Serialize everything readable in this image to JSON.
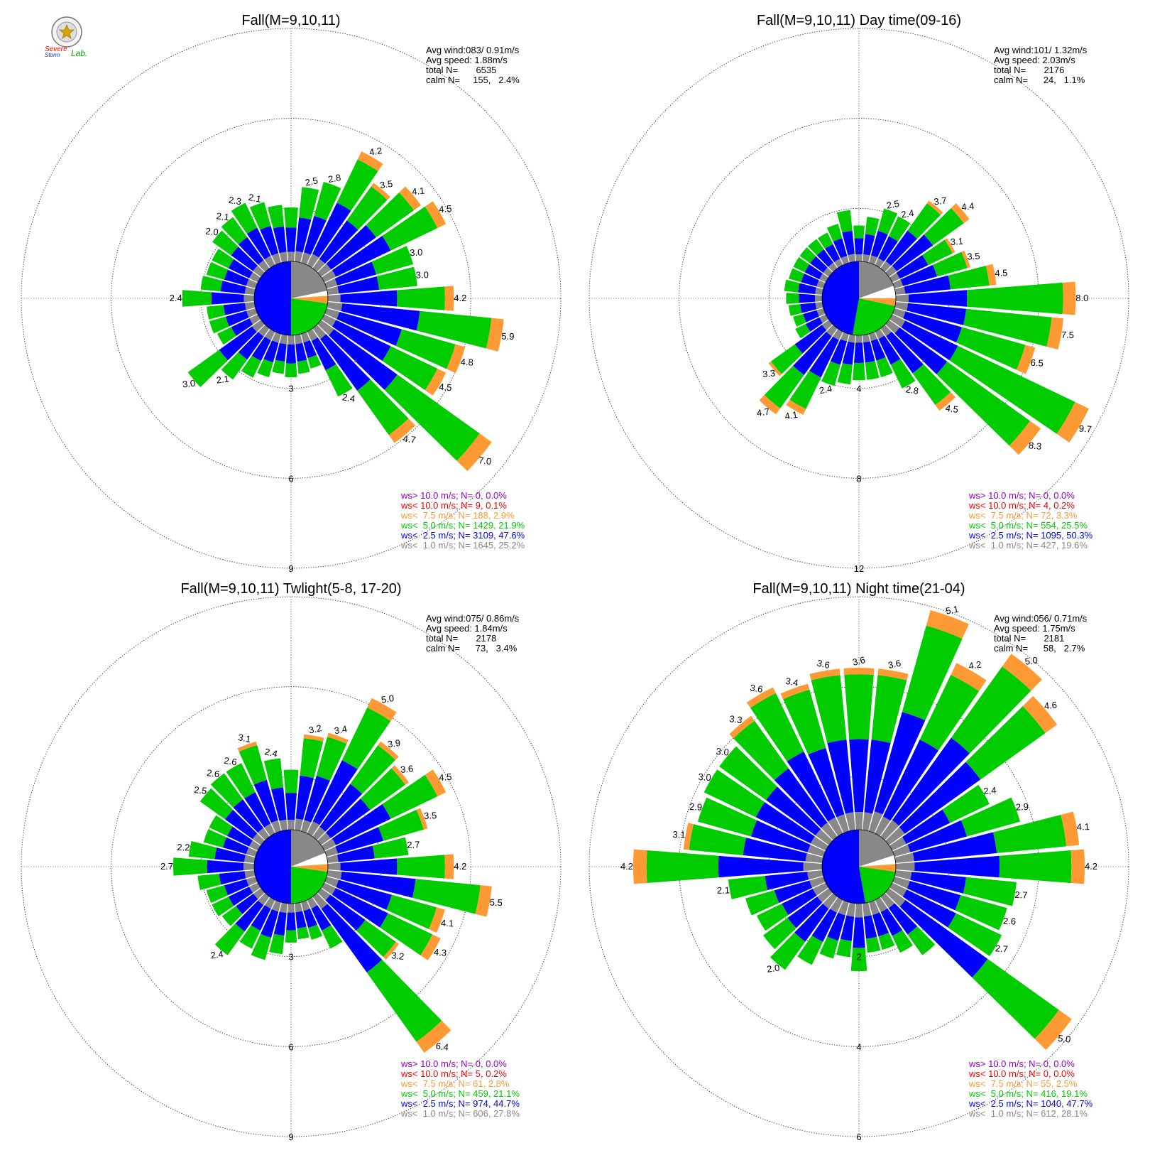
{
  "logo": {
    "text_line1": "Severe",
    "text_line2": "Storm",
    "text_lab": "Lab."
  },
  "colors": {
    "purple": "#9900cc",
    "red": "#ff0000",
    "orange": "#ff9933",
    "green": "#00cc00",
    "blue": "#0000ff",
    "gray": "#888888"
  },
  "chart_data": [
    {
      "type": "windrose",
      "title": "Fall(M=9,10,11)",
      "stats": [
        "Avg wind:083/ 0.91m/s",
        "Avg speed: 1.88m/s",
        "total N=       6535",
        "calm N=     155,   2.4%"
      ],
      "ring_labels": [
        "3",
        "6",
        "9"
      ],
      "rmax": 9,
      "legend": [
        {
          "label": "ws> 10.0 m/s; N=",
          "n": "0",
          "pct": "0.0%",
          "color": "purple"
        },
        {
          "label": "ws< 10.0 m/s; N=",
          "n": "9",
          "pct": "0.1%",
          "color": "red"
        },
        {
          "label": "ws<  7.5 m/s; N=",
          "n": "188",
          "pct": "2.9%",
          "color": "orange"
        },
        {
          "label": "ws<  5.0 m/s; N=",
          "n": "1429",
          "pct": "21.9%",
          "color": "green"
        },
        {
          "label": "ws<  2.5 m/s; N=",
          "n": "3109",
          "pct": "47.6%",
          "color": "blue"
        },
        {
          "label": "ws<  1.0 m/s; N=",
          "n": "1645",
          "pct": "25.2%",
          "color": "gray"
        }
      ],
      "inner_pie": [
        {
          "color": "gray",
          "from": 0,
          "to": 78
        },
        {
          "color": "white",
          "from": 78,
          "to": 86
        },
        {
          "color": "orange",
          "from": 86,
          "to": 98
        },
        {
          "color": "green",
          "from": 98,
          "to": 180
        },
        {
          "color": "blue",
          "from": 180,
          "to": 360
        }
      ],
      "bars": [
        {
          "dir": 0,
          "total": 1.8
        },
        {
          "dir": 10,
          "total": 2.5,
          "label": "2.5"
        },
        {
          "dir": 20,
          "total": 2.8,
          "label": "2.8"
        },
        {
          "dir": 30,
          "total": 4.2,
          "label": "4.2"
        },
        {
          "dir": 40,
          "total": 3.5,
          "label": "3.5"
        },
        {
          "dir": 50,
          "total": 4.1,
          "label": "4.1"
        },
        {
          "dir": 60,
          "total": 4.5,
          "label": "4.5"
        },
        {
          "dir": 70,
          "total": 3.0,
          "label": "3.0"
        },
        {
          "dir": 80,
          "total": 3.0,
          "label": "3.0"
        },
        {
          "dir": 90,
          "total": 4.2,
          "label": "4.2"
        },
        {
          "dir": 100,
          "total": 5.9,
          "label": "5.9"
        },
        {
          "dir": 110,
          "total": 4.8,
          "label": "4.8"
        },
        {
          "dir": 120,
          "total": 4.5,
          "label": "4.5"
        },
        {
          "dir": 130,
          "total": 7.0,
          "label": "7.0"
        },
        {
          "dir": 140,
          "total": 4.7,
          "label": "4.7"
        },
        {
          "dir": 150,
          "total": 2.4,
          "label": "2.4"
        },
        {
          "dir": 160,
          "total": 1.2
        },
        {
          "dir": 170,
          "total": 1.3
        },
        {
          "dir": 180,
          "total": 1.4
        },
        {
          "dir": 190,
          "total": 1.3
        },
        {
          "dir": 200,
          "total": 1.5
        },
        {
          "dir": 210,
          "total": 1.7
        },
        {
          "dir": 220,
          "total": 2.1,
          "label": "2.1"
        },
        {
          "dir": 230,
          "total": 3.0,
          "label": "3.0"
        },
        {
          "dir": 240,
          "total": 1.5
        },
        {
          "dir": 250,
          "total": 1.6
        },
        {
          "dir": 260,
          "total": 1.6
        },
        {
          "dir": 270,
          "total": 2.4,
          "label": "2.4"
        },
        {
          "dir": 280,
          "total": 1.8
        },
        {
          "dir": 290,
          "total": 1.7
        },
        {
          "dir": 300,
          "total": 1.7
        },
        {
          "dir": 310,
          "total": 2.0,
          "label": "2.0"
        },
        {
          "dir": 320,
          "total": 2.1,
          "label": "2.1"
        },
        {
          "dir": 330,
          "total": 2.3,
          "label": "2.3"
        },
        {
          "dir": 340,
          "total": 2.1,
          "label": "2.1"
        },
        {
          "dir": 350,
          "total": 1.9
        }
      ]
    },
    {
      "type": "windrose",
      "title": "Fall(M=9,10,11) Day time(09-16)",
      "stats": [
        "Avg wind:101/ 1.32m/s",
        "Avg speed: 2.03m/s",
        "total N=       2176",
        "calm N=      24,   1.1%"
      ],
      "ring_labels": [
        "4",
        "8",
        "12"
      ],
      "rmax": 12,
      "legend": [
        {
          "label": "ws> 10.0 m/s; N=",
          "n": "0",
          "pct": "0.0%",
          "color": "purple"
        },
        {
          "label": "ws< 10.0 m/s; N=",
          "n": "4",
          "pct": "0.2%",
          "color": "red"
        },
        {
          "label": "ws<  7.5 m/s; N=",
          "n": "72",
          "pct": "3.3%",
          "color": "orange"
        },
        {
          "label": "ws<  5.0 m/s; N=",
          "n": "554",
          "pct": "25.5%",
          "color": "green"
        },
        {
          "label": "ws<  2.5 m/s; N=",
          "n": "1095",
          "pct": "50.3%",
          "color": "blue"
        },
        {
          "label": "ws<  1.0 m/s; N=",
          "n": "427",
          "pct": "19.6%",
          "color": "gray"
        }
      ],
      "inner_pie": [
        {
          "color": "gray",
          "from": 0,
          "to": 70
        },
        {
          "color": "white",
          "from": 70,
          "to": 90
        },
        {
          "color": "orange",
          "from": 90,
          "to": 102
        },
        {
          "color": "green",
          "from": 102,
          "to": 190
        },
        {
          "color": "blue",
          "from": 190,
          "to": 360
        }
      ],
      "bars": [
        {
          "dir": 0,
          "total": 1.6
        },
        {
          "dir": 10,
          "total": 2.0
        },
        {
          "dir": 20,
          "total": 2.5,
          "label": "2.5"
        },
        {
          "dir": 30,
          "total": 2.4,
          "label": "2.4"
        },
        {
          "dir": 40,
          "total": 3.7,
          "label": "3.7"
        },
        {
          "dir": 50,
          "total": 4.4,
          "label": "4.4"
        },
        {
          "dir": 60,
          "total": 3.1,
          "label": "3.1"
        },
        {
          "dir": 70,
          "total": 3.5,
          "label": "3.5"
        },
        {
          "dir": 80,
          "total": 4.5,
          "label": "4.5"
        },
        {
          "dir": 90,
          "total": 8.0,
          "label": "8.0"
        },
        {
          "dir": 100,
          "total": 7.5,
          "label": "7.5"
        },
        {
          "dir": 110,
          "total": 6.5,
          "label": "6.5"
        },
        {
          "dir": 120,
          "total": 9.7,
          "label": "9.7"
        },
        {
          "dir": 130,
          "total": 8.3,
          "label": "8.3"
        },
        {
          "dir": 140,
          "total": 4.5,
          "label": "4.5"
        },
        {
          "dir": 150,
          "total": 2.8,
          "label": "2.8"
        },
        {
          "dir": 160,
          "total": 2.0
        },
        {
          "dir": 170,
          "total": 2.0
        },
        {
          "dir": 180,
          "total": 2.0
        },
        {
          "dir": 190,
          "total": 2.2
        },
        {
          "dir": 200,
          "total": 2.4,
          "label": "2.4"
        },
        {
          "dir": 210,
          "total": 4.1,
          "label": "4.1"
        },
        {
          "dir": 220,
          "total": 4.7,
          "label": "4.7"
        },
        {
          "dir": 230,
          "total": 3.3,
          "label": "3.3"
        },
        {
          "dir": 240,
          "total": 1.5
        },
        {
          "dir": 250,
          "total": 1.4
        },
        {
          "dir": 260,
          "total": 1.5
        },
        {
          "dir": 270,
          "total": 1.6
        },
        {
          "dir": 280,
          "total": 1.7
        },
        {
          "dir": 290,
          "total": 1.6
        },
        {
          "dir": 300,
          "total": 1.6
        },
        {
          "dir": 310,
          "total": 1.6
        },
        {
          "dir": 320,
          "total": 1.6
        },
        {
          "dir": 330,
          "total": 1.6
        },
        {
          "dir": 340,
          "total": 1.8
        },
        {
          "dir": 350,
          "total": 2.3
        }
      ]
    },
    {
      "type": "windrose",
      "title": "Fall(M=9,10,11) Twlight(5-8, 17-20)",
      "stats": [
        "Avg wind:075/ 0.86m/s",
        "Avg speed: 1.84m/s",
        "total N=       2178",
        "calm N=      73,   3.4%"
      ],
      "ring_labels": [
        "3",
        "6",
        "9"
      ],
      "rmax": 9,
      "legend": [
        {
          "label": "ws> 10.0 m/s; N=",
          "n": "0",
          "pct": "0.0%",
          "color": "purple"
        },
        {
          "label": "ws< 10.0 m/s; N=",
          "n": "5",
          "pct": "0.2%",
          "color": "red"
        },
        {
          "label": "ws<  7.5 m/s; N=",
          "n": "61",
          "pct": "2.8%",
          "color": "orange"
        },
        {
          "label": "ws<  5.0 m/s; N=",
          "n": "459",
          "pct": "21.1%",
          "color": "green"
        },
        {
          "label": "ws<  2.5 m/s; N=",
          "n": "974",
          "pct": "44.7%",
          "color": "blue"
        },
        {
          "label": "ws<  1.0 m/s; N=",
          "n": "606",
          "pct": "27.8%",
          "color": "gray"
        }
      ],
      "inner_pie": [
        {
          "color": "gray",
          "from": 0,
          "to": 68
        },
        {
          "color": "white",
          "from": 68,
          "to": 86
        },
        {
          "color": "orange",
          "from": 86,
          "to": 98
        },
        {
          "color": "green",
          "from": 98,
          "to": 180
        },
        {
          "color": "blue",
          "from": 180,
          "to": 360
        }
      ],
      "bars": [
        {
          "dir": 0,
          "total": 2.0
        },
        {
          "dir": 10,
          "total": 3.2,
          "label": "3.2"
        },
        {
          "dir": 20,
          "total": 3.4,
          "label": "3.4"
        },
        {
          "dir": 30,
          "total": 5.0,
          "label": "5.0"
        },
        {
          "dir": 40,
          "total": 3.9,
          "label": "3.9"
        },
        {
          "dir": 50,
          "total": 3.6,
          "label": "3.6"
        },
        {
          "dir": 60,
          "total": 4.5,
          "label": "4.5"
        },
        {
          "dir": 70,
          "total": 3.5,
          "label": "3.5"
        },
        {
          "dir": 80,
          "total": 2.7,
          "label": "2.7"
        },
        {
          "dir": 90,
          "total": 4.2,
          "label": "4.2"
        },
        {
          "dir": 100,
          "total": 5.5,
          "label": "5.5"
        },
        {
          "dir": 110,
          "total": 4.1,
          "label": "4.1"
        },
        {
          "dir": 120,
          "total": 4.3,
          "label": "4.3"
        },
        {
          "dir": 130,
          "total": 3.2,
          "label": "3.2"
        },
        {
          "dir": 140,
          "total": 6.4,
          "label": "6.4"
        },
        {
          "dir": 150,
          "total": 1.8
        },
        {
          "dir": 160,
          "total": 1.3
        },
        {
          "dir": 170,
          "total": 1.2
        },
        {
          "dir": 180,
          "total": 1.3
        },
        {
          "dir": 190,
          "total": 1.7
        },
        {
          "dir": 200,
          "total": 2.0
        },
        {
          "dir": 210,
          "total": 1.8
        },
        {
          "dir": 220,
          "total": 2.4,
          "label": "2.4"
        },
        {
          "dir": 230,
          "total": 1.6
        },
        {
          "dir": 240,
          "total": 1.7
        },
        {
          "dir": 250,
          "total": 1.7
        },
        {
          "dir": 260,
          "total": 1.9
        },
        {
          "dir": 270,
          "total": 2.7,
          "label": "2.7"
        },
        {
          "dir": 280,
          "total": 2.2,
          "label": "2.2"
        },
        {
          "dir": 290,
          "total": 1.8
        },
        {
          "dir": 300,
          "total": 1.8
        },
        {
          "dir": 310,
          "total": 2.5,
          "label": "2.5"
        },
        {
          "dir": 320,
          "total": 2.6,
          "label": "2.6"
        },
        {
          "dir": 330,
          "total": 2.6,
          "label": "2.6"
        },
        {
          "dir": 340,
          "total": 3.1,
          "label": "3.1"
        },
        {
          "dir": 350,
          "total": 2.4,
          "label": "2.4"
        }
      ]
    },
    {
      "type": "windrose",
      "title": "Fall(M=9,10,11) Night time(21-04)",
      "stats": [
        "Avg wind:056/ 0.71m/s",
        "Avg speed: 1.75m/s",
        "total N=       2181",
        "calm N=      58,   2.7%"
      ],
      "ring_labels": [
        "2",
        "4",
        "6"
      ],
      "rmax": 6,
      "legend": [
        {
          "label": "ws> 10.0 m/s; N=",
          "n": "0",
          "pct": "0.0%",
          "color": "purple"
        },
        {
          "label": "ws< 10.0 m/s; N=",
          "n": "0",
          "pct": "0.0%",
          "color": "red"
        },
        {
          "label": "ws<  7.5 m/s; N=",
          "n": "55",
          "pct": "2.5%",
          "color": "orange"
        },
        {
          "label": "ws<  5.0 m/s; N=",
          "n": "416",
          "pct": "19.1%",
          "color": "green"
        },
        {
          "label": "ws<  2.5 m/s; N=",
          "n": "1040",
          "pct": "47.7%",
          "color": "blue"
        },
        {
          "label": "ws<  1.0 m/s; N=",
          "n": "612",
          "pct": "28.1%",
          "color": "gray"
        }
      ],
      "inner_pie": [
        {
          "color": "gray",
          "from": 0,
          "to": 72
        },
        {
          "color": "white",
          "from": 72,
          "to": 86
        },
        {
          "color": "orange",
          "from": 86,
          "to": 98
        },
        {
          "color": "green",
          "from": 98,
          "to": 170
        },
        {
          "color": "blue",
          "from": 170,
          "to": 360
        }
      ],
      "bars": [
        {
          "dir": 0,
          "total": 3.6,
          "label": "3.6"
        },
        {
          "dir": 10,
          "total": 3.6,
          "label": "3.6"
        },
        {
          "dir": 20,
          "total": 5.1,
          "label": "5.1"
        },
        {
          "dir": 30,
          "total": 4.2,
          "label": "4.2"
        },
        {
          "dir": 40,
          "total": 5.0,
          "label": "5.0"
        },
        {
          "dir": 50,
          "total": 4.6,
          "label": "4.6"
        },
        {
          "dir": 60,
          "total": 2.4,
          "label": "2.4"
        },
        {
          "dir": 70,
          "total": 2.9,
          "label": "2.9"
        },
        {
          "dir": 80,
          "total": 4.1,
          "label": "4.1"
        },
        {
          "dir": 90,
          "total": 4.2,
          "label": "4.2"
        },
        {
          "dir": 100,
          "total": 2.7,
          "label": "2.7"
        },
        {
          "dir": 110,
          "total": 2.6,
          "label": "2.6"
        },
        {
          "dir": 120,
          "total": 2.7,
          "label": "2.7"
        },
        {
          "dir": 130,
          "total": 5.0,
          "label": "5.0"
        },
        {
          "dir": 140,
          "total": 1.6
        },
        {
          "dir": 150,
          "total": 1.3
        },
        {
          "dir": 160,
          "total": 1.1
        },
        {
          "dir": 170,
          "total": 1.1
        },
        {
          "dir": 180,
          "total": 1.5
        },
        {
          "dir": 190,
          "total": 1.2
        },
        {
          "dir": 200,
          "total": 1.3
        },
        {
          "dir": 210,
          "total": 1.6
        },
        {
          "dir": 220,
          "total": 2.0,
          "label": "2.0"
        },
        {
          "dir": 230,
          "total": 1.8
        },
        {
          "dir": 240,
          "total": 1.7
        },
        {
          "dir": 250,
          "total": 1.8
        },
        {
          "dir": 260,
          "total": 2.1,
          "label": "2.1"
        },
        {
          "dir": 270,
          "total": 4.2,
          "label": "4.2"
        },
        {
          "dir": 280,
          "total": 3.1,
          "label": "3.1"
        },
        {
          "dir": 290,
          "total": 2.9,
          "label": "2.9"
        },
        {
          "dir": 300,
          "total": 3.0,
          "label": "3.0"
        },
        {
          "dir": 310,
          "total": 3.0,
          "label": "3.0"
        },
        {
          "dir": 320,
          "total": 3.3,
          "label": "3.3"
        },
        {
          "dir": 330,
          "total": 3.6,
          "label": "3.6"
        },
        {
          "dir": 340,
          "total": 3.4,
          "label": "3.4"
        },
        {
          "dir": 350,
          "total": 3.6,
          "label": "3.6"
        }
      ]
    }
  ]
}
